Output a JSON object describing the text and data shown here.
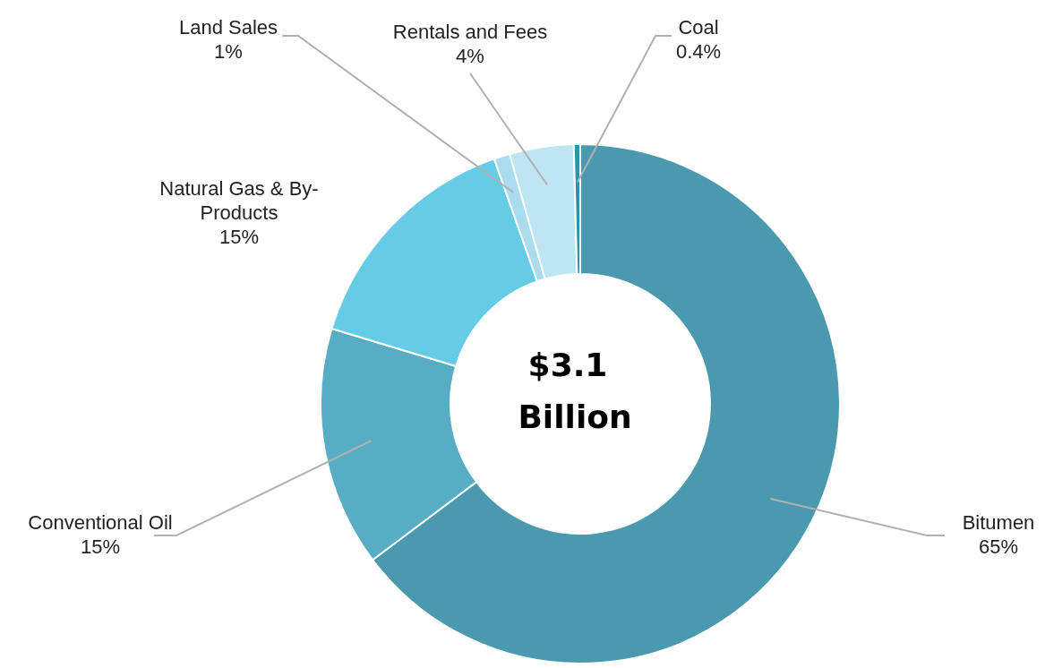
{
  "chart_data": {
    "type": "donut",
    "categories": [
      "Bitumen",
      "Conventional Oil",
      "Natural Gas & By-Products",
      "Land Sales",
      "Rentals and Fees",
      "Coal"
    ],
    "values": [
      65,
      15,
      15,
      1,
      4,
      0.4
    ],
    "value_labels": [
      "65%",
      "15%",
      "15%",
      "1%",
      "4%",
      "0.4%"
    ],
    "colors": [
      "#4a99ae",
      "#57adc3",
      "#66cbe4",
      "#aadced",
      "#bee5f2",
      "#2f92b2"
    ],
    "annotations": [
      "$3.1 Billion"
    ],
    "legend": false
  }
}
